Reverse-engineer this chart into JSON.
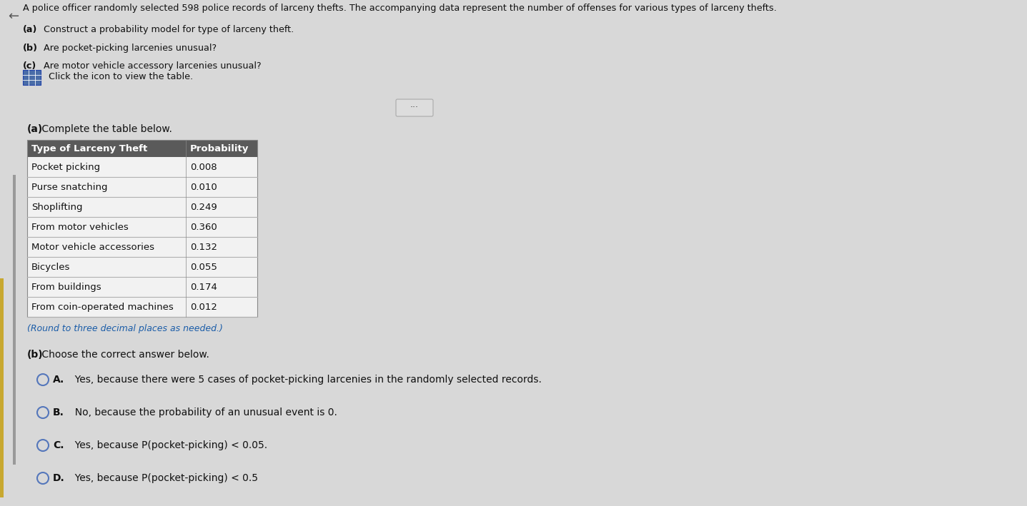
{
  "bg_color_top": "#d8d8d8",
  "bg_color_bot": "#e0e0e0",
  "header_text": "A police officer randomly selected 598 police records of larceny thefts. The accompanying data represent the number of offenses for various types of larceny thefts.",
  "sub_questions": [
    [
      "(a)",
      " Construct a probability model for type of larceny theft."
    ],
    [
      "(b)",
      " Are pocket-picking larcenies unusual?"
    ],
    [
      "(c)",
      " Are motor vehicle accessory larcenies unusual?"
    ]
  ],
  "click_text": "Click the icon to view the table.",
  "section_a_label": "(a)",
  "section_a_text": " Complete the table below.",
  "table_col1_header": "Type of Larceny Theft",
  "table_col2_header": "Probability",
  "table_rows": [
    [
      "Pocket picking",
      "0.008"
    ],
    [
      "Purse snatching",
      "0.010"
    ],
    [
      "Shoplifting",
      "0.249"
    ],
    [
      "From motor vehicles",
      "0.360"
    ],
    [
      "Motor vehicle accessories",
      "0.132"
    ],
    [
      "Bicycles",
      "0.055"
    ],
    [
      "From buildings",
      "0.174"
    ],
    [
      "From coin-operated machines",
      "0.012"
    ]
  ],
  "round_note": "(Round to three decimal places as needed.)",
  "section_b_label": "(b)",
  "section_b_text": " Choose the correct answer below.",
  "choices": [
    [
      "A.",
      "  Yes, because there were 5 cases of pocket-picking larcenies in the randomly selected records."
    ],
    [
      "B.",
      "  No, because the probability of an unusual event is 0."
    ],
    [
      "C.",
      "  Yes, because P(pocket-picking) < 0.05."
    ],
    [
      "D.",
      "  Yes, because P(pocket-picking) < 0.5"
    ]
  ],
  "table_header_bg": "#5a5a5a",
  "table_header_fg": "#ffffff",
  "row_line_color": "#b0b0b0",
  "table_border_color": "#888888",
  "table_row_bg": "#f2f2f2",
  "choice_circle_color": "#5577bb",
  "text_color": "#111111",
  "note_color": "#1a5ca8",
  "accent_bar_color": "#c8a830",
  "divider_color": "#aaaaaa",
  "dots_bg": "#dddddd",
  "dots_border": "#aaaaaa",
  "arrow_color": "#555555",
  "icon_bg": "#4a6da8",
  "icon_grid": "#ffffff"
}
